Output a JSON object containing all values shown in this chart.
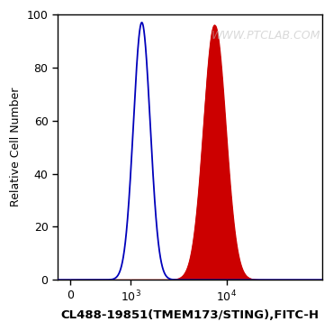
{
  "xlabel": "CL488-19851(TMEM173/STING),FITC-H",
  "ylabel": "Relative Cell Number",
  "ylim": [
    0,
    100
  ],
  "xlim": [
    -200,
    100000
  ],
  "yticks": [
    0,
    20,
    40,
    60,
    80,
    100
  ],
  "blue_peak_x_log": 1300,
  "blue_peak_y": 97,
  "blue_sigma_log": 0.088,
  "red_peak_x_log": 7500,
  "red_peak_y": 96,
  "red_sigma_log": 0.115,
  "blue_color": "#0000bb",
  "red_color": "#cc0000",
  "red_fill_color": "#cc0000",
  "background_color": "#ffffff",
  "watermark_text": "WWW.PTCLAB.COM",
  "watermark_color": "#bbbbbb",
  "watermark_alpha": 0.55,
  "xlabel_fontsize": 9.5,
  "ylabel_fontsize": 9,
  "tick_fontsize": 9,
  "watermark_fontsize": 9,
  "linthresh": 500,
  "linscale": 0.3
}
